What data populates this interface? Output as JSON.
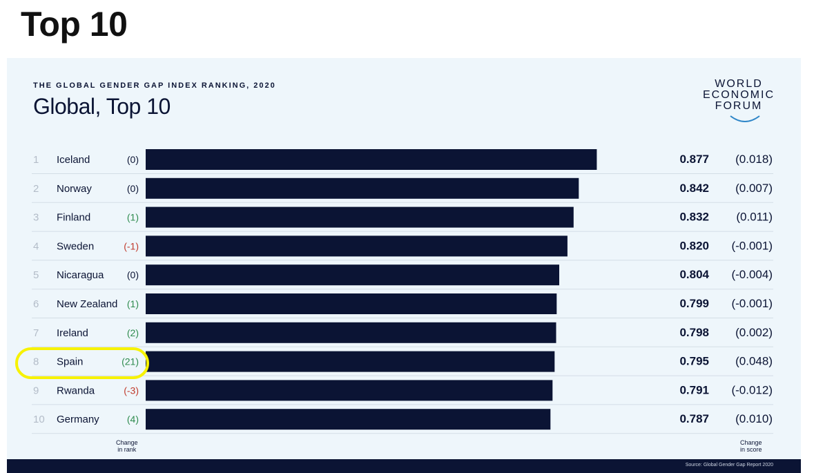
{
  "page": {
    "heading": "Top 10"
  },
  "card": {
    "subtitle": "THE GLOBAL GENDER GAP INDEX RANKING, 2020",
    "title": "Global, Top 10",
    "logo_lines": [
      "WORLD",
      "ECONOMIC",
      "FORUM"
    ],
    "source": "Source: Global Gender Gap Report 2020",
    "change_rank_label": [
      "Change",
      "in rank"
    ],
    "change_score_label": [
      "Change",
      "in score"
    ]
  },
  "colors": {
    "bar": "#0b1434",
    "positive": "#2e8b4e",
    "negative": "#c0392b",
    "neutral": "#0b1434",
    "highlight": "#f7f200"
  },
  "chart_data": {
    "type": "bar",
    "orientation": "horizontal",
    "title": "Global, Top 10",
    "subtitle": "THE GLOBAL GENDER GAP INDEX RANKING, 2020",
    "xlim": [
      0,
      1
    ],
    "grid": false,
    "rows": [
      {
        "rank": "1",
        "country": "Iceland",
        "rank_change": "(0)",
        "score": 0.877,
        "score_label": "0.877",
        "score_change": "(0.018)"
      },
      {
        "rank": "2",
        "country": "Norway",
        "rank_change": "(0)",
        "score": 0.842,
        "score_label": "0.842",
        "score_change": "(0.007)"
      },
      {
        "rank": "3",
        "country": "Finland",
        "rank_change": "(1)",
        "score": 0.832,
        "score_label": "0.832",
        "score_change": "(0.011)"
      },
      {
        "rank": "4",
        "country": "Sweden",
        "rank_change": "(-1)",
        "score": 0.82,
        "score_label": "0.820",
        "score_change": "(-0.001)"
      },
      {
        "rank": "5",
        "country": "Nicaragua",
        "rank_change": "(0)",
        "score": 0.804,
        "score_label": "0.804",
        "score_change": "(-0.004)"
      },
      {
        "rank": "6",
        "country": "New Zealand",
        "rank_change": "(1)",
        "score": 0.799,
        "score_label": "0.799",
        "score_change": "(-0.001)"
      },
      {
        "rank": "7",
        "country": "Ireland",
        "rank_change": "(2)",
        "score": 0.798,
        "score_label": "0.798",
        "score_change": "(0.002)"
      },
      {
        "rank": "8",
        "country": "Spain",
        "rank_change": "(21)",
        "score": 0.795,
        "score_label": "0.795",
        "score_change": "(0.048)",
        "highlighted": true
      },
      {
        "rank": "9",
        "country": "Rwanda",
        "rank_change": "(-3)",
        "score": 0.791,
        "score_label": "0.791",
        "score_change": "(-0.012)"
      },
      {
        "rank": "10",
        "country": "Germany",
        "rank_change": "(4)",
        "score": 0.787,
        "score_label": "0.787",
        "score_change": "(0.010)"
      }
    ]
  }
}
